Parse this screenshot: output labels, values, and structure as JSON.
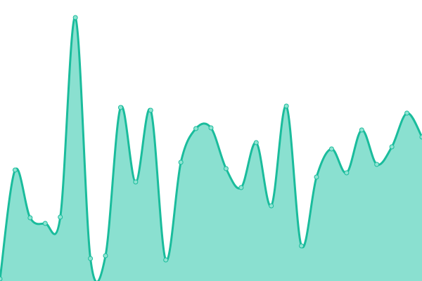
{
  "chart_data": {
    "type": "area",
    "title": "",
    "xlabel": "",
    "ylabel": "",
    "grid": false,
    "legend": "none",
    "x": [
      0,
      1,
      2,
      3,
      4,
      5,
      6,
      7,
      8,
      9,
      10,
      11,
      12,
      13,
      14,
      15,
      16,
      17,
      18,
      19,
      20,
      21,
      22,
      23,
      24,
      25,
      26,
      27,
      28
    ],
    "series": [
      {
        "values": [
          3,
          158,
          90,
          82,
          91,
          375,
          32,
          36,
          247,
          141,
          243,
          30,
          169,
          217,
          218,
          160,
          133,
          197,
          107,
          249,
          50,
          148,
          188,
          154,
          215,
          166,
          191,
          239,
          205
        ]
      }
    ],
    "xlim": [
      0,
      28
    ],
    "ylim": [
      0,
      400
    ],
    "colors": {
      "line": "#1abc9c",
      "fill": "#8ae0d0",
      "marker_fill": "#8fe3d2"
    },
    "curve": "smooth",
    "markers": true
  }
}
